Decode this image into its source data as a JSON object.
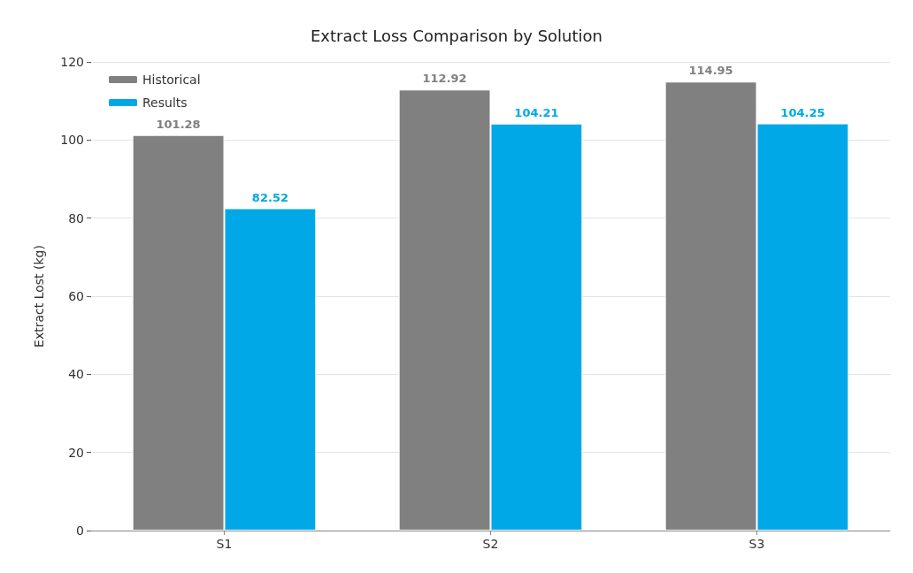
{
  "chart_data": {
    "type": "bar",
    "title": "Extract Loss Comparison by Solution",
    "ylabel": "Extract Lost (kg)",
    "categories": [
      "S1",
      "S2",
      "S3"
    ],
    "series": [
      {
        "name": "Historical",
        "color": "#808080",
        "values": [
          101.28,
          112.92,
          114.95
        ]
      },
      {
        "name": "Results",
        "color": "#00a8e8",
        "values": [
          82.52,
          104.21,
          104.25
        ]
      }
    ],
    "ylim": [
      0,
      120
    ],
    "yticks": [
      0,
      20,
      40,
      60,
      80,
      100,
      120
    ],
    "grid": "y",
    "legend": "top left",
    "data_labels": true
  }
}
